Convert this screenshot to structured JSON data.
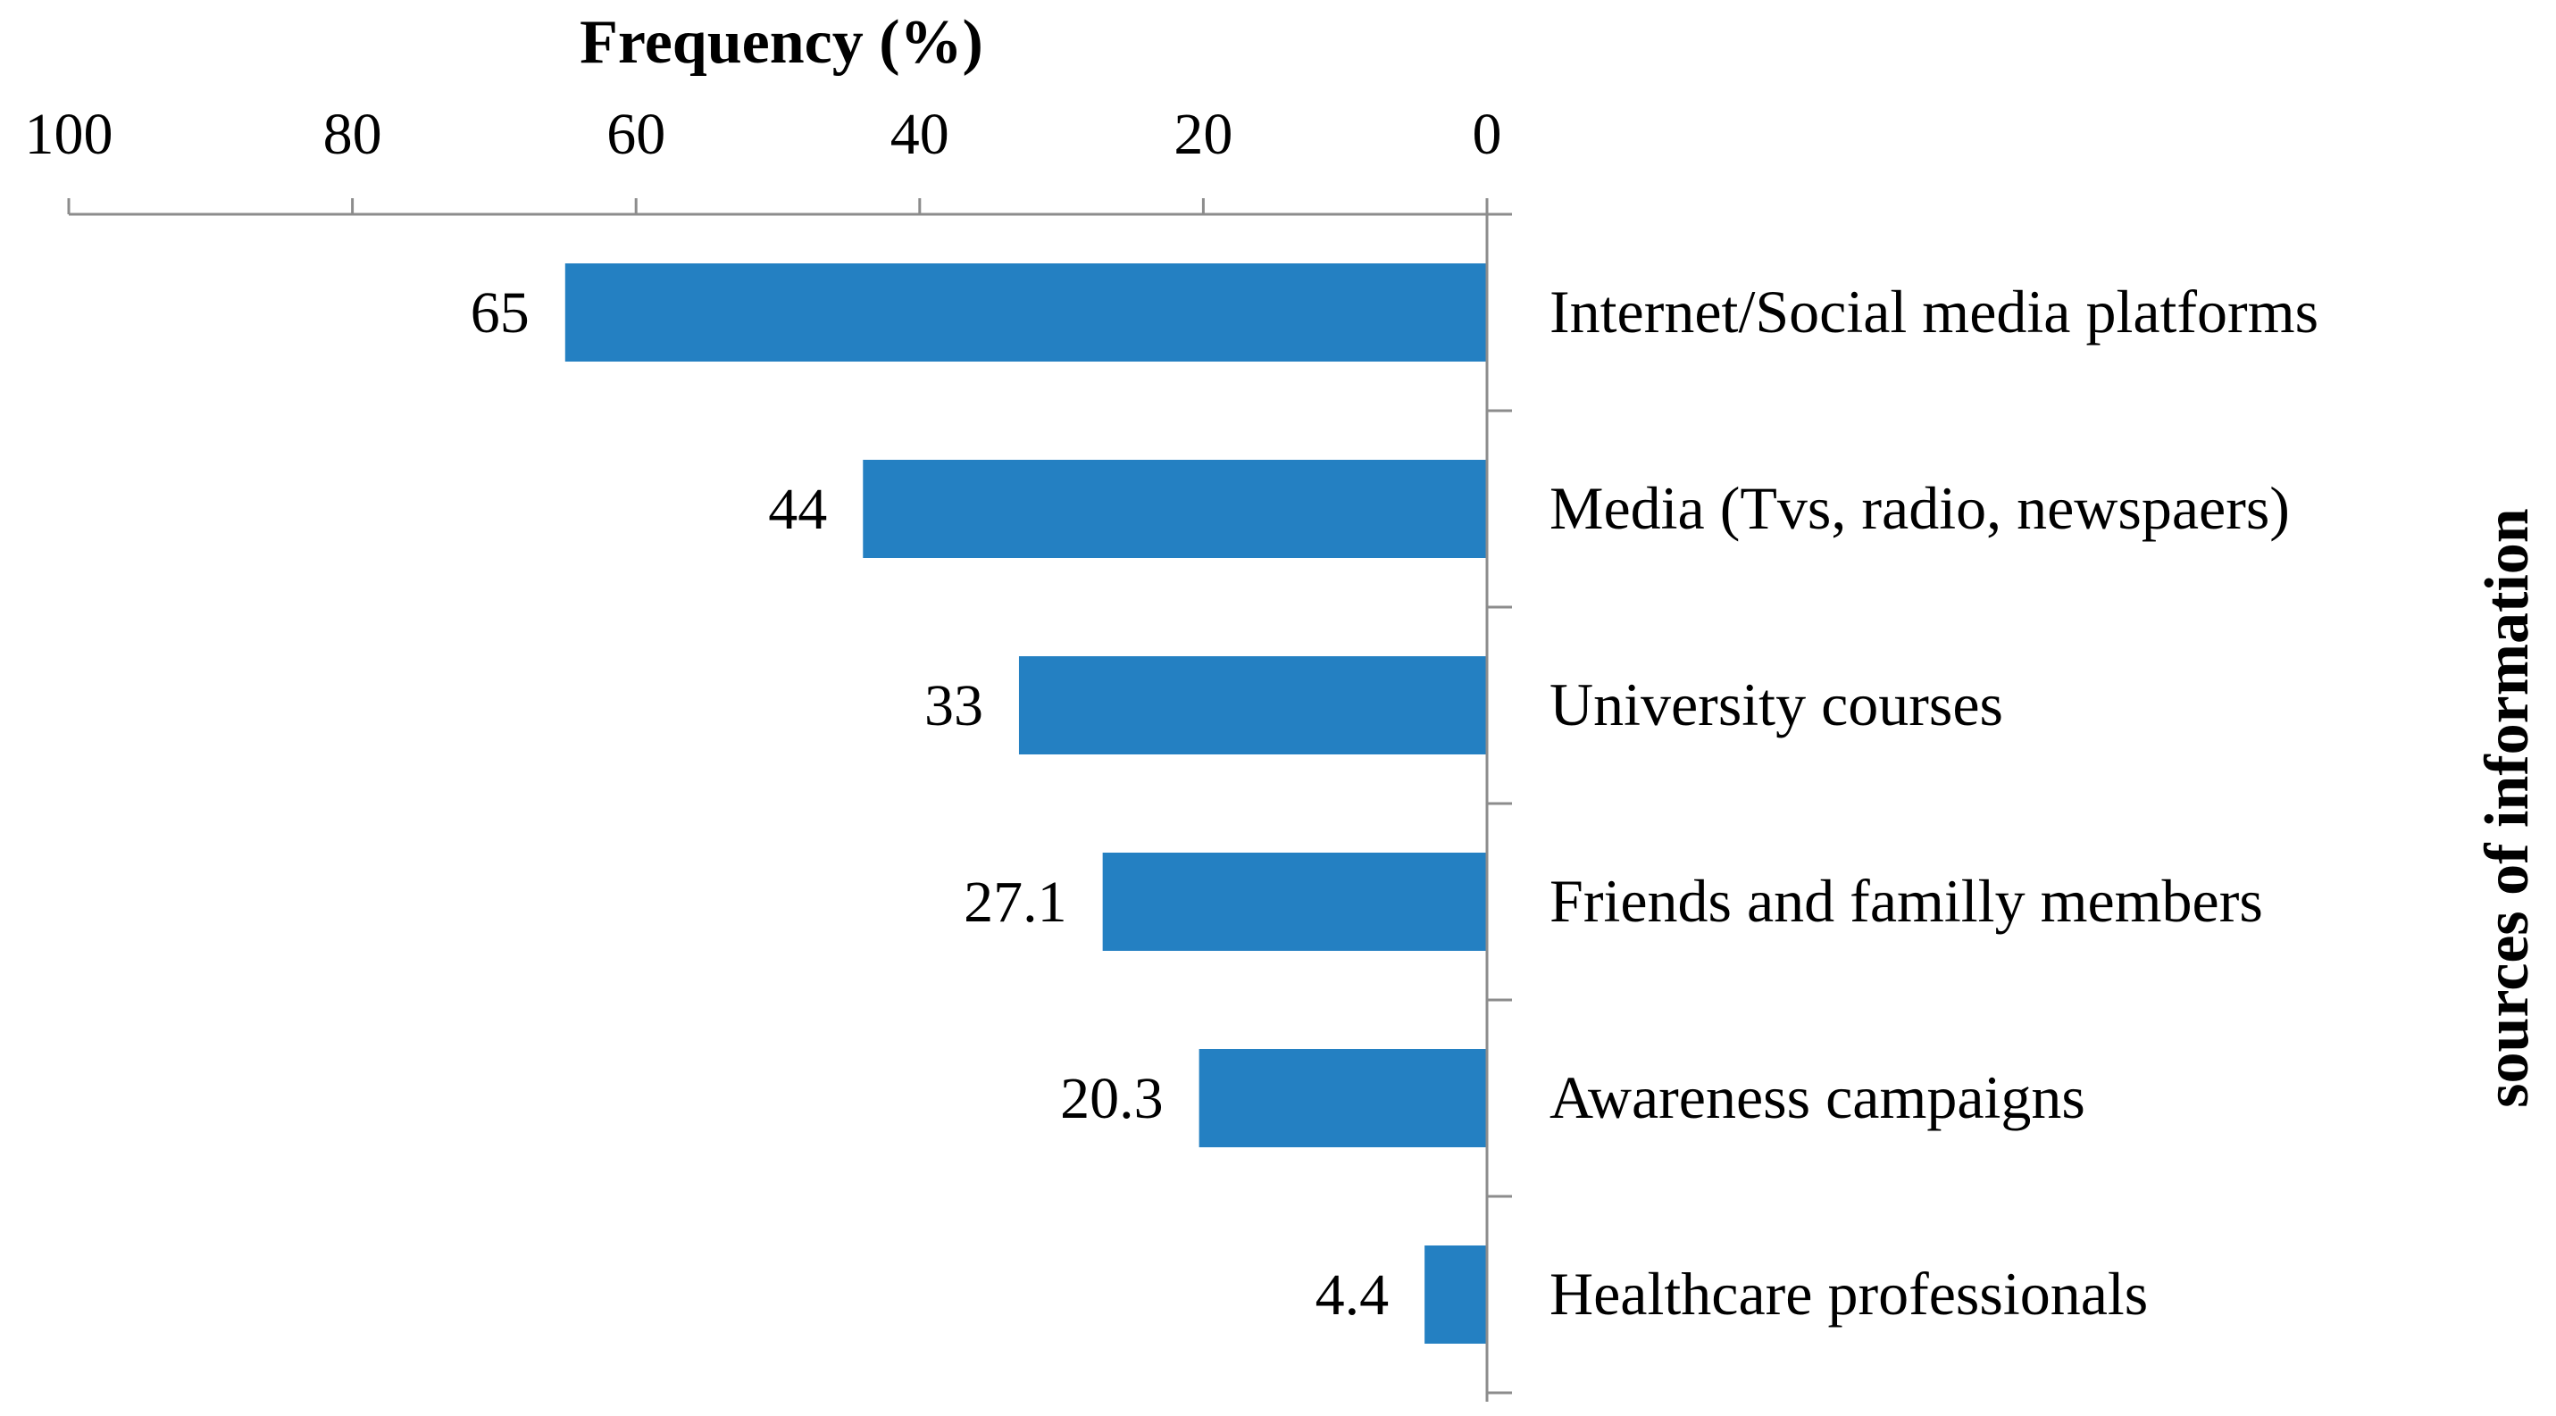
{
  "chart_data": {
    "type": "bar",
    "orientation": "horizontal",
    "x_direction": "reversed",
    "xlabel": "Frequency (%)",
    "ylabel": "sources of information",
    "xlim": [
      0,
      100
    ],
    "xticks": [
      "100",
      "80",
      "60",
      "40",
      "20",
      "0"
    ],
    "categories": [
      "Internet/Social media platforms",
      "Media (Tvs, radio, newspaers)",
      "University courses",
      "Friends and familly members",
      "Awareness campaigns",
      "Healthcare professionals"
    ],
    "values": [
      65,
      44,
      33,
      27.1,
      20.3,
      4.4
    ],
    "value_labels": [
      "65",
      "44",
      "33",
      "27.1",
      "20.3",
      "4.4"
    ],
    "colors": {
      "bar": "#2480c2",
      "axis": "#8c8c8c",
      "text": "#000000"
    }
  }
}
